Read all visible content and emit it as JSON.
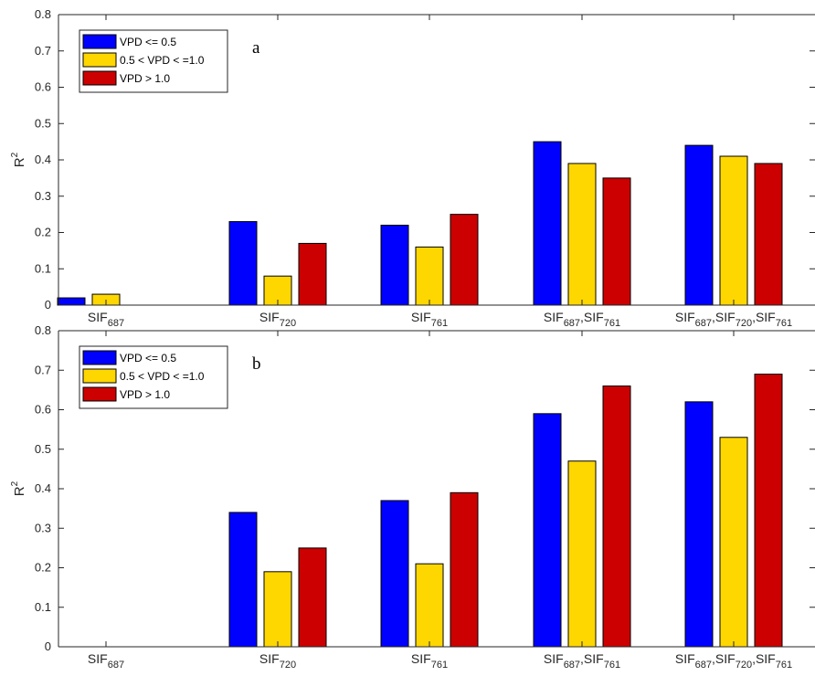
{
  "chart_data": [
    {
      "type": "bar",
      "panel_label": "a",
      "ylabel_base": "R",
      "ylabel_sup": "2",
      "ylim": [
        0,
        0.8
      ],
      "yticks": [
        "0",
        "0.1",
        "0.2",
        "0.3",
        "0.4",
        "0.5",
        "0.6",
        "0.7",
        "0.8"
      ],
      "categories": [
        {
          "parts": [
            {
              "t": "SIF",
              "sub": "687"
            }
          ]
        },
        {
          "parts": [
            {
              "t": "SIF",
              "sub": "720"
            }
          ]
        },
        {
          "parts": [
            {
              "t": "SIF",
              "sub": "761"
            }
          ]
        },
        {
          "parts": [
            {
              "t": "SIF",
              "sub": "687"
            },
            {
              "t": ",SIF",
              "sub": "761"
            }
          ]
        },
        {
          "parts": [
            {
              "t": "SIF",
              "sub": "687"
            },
            {
              "t": ",SIF",
              "sub": "720"
            },
            {
              "t": ",SIF",
              "sub": "761"
            }
          ]
        }
      ],
      "series": [
        {
          "name": "VPD <= 0.5",
          "color": "#0000ff",
          "values": [
            0.02,
            0.23,
            0.22,
            0.45,
            0.44
          ]
        },
        {
          "name": "0.5 < VPD < =1.0",
          "color": "#ffd700",
          "values": [
            0.03,
            0.08,
            0.16,
            0.39,
            0.41
          ]
        },
        {
          "name": "VPD > 1.0",
          "color": "#cc0000",
          "values": [
            0,
            0.17,
            0.25,
            0.35,
            0.39
          ]
        }
      ],
      "legend_position": "top-left",
      "grid": false
    },
    {
      "type": "bar",
      "panel_label": "b",
      "ylabel_base": "R",
      "ylabel_sup": "2",
      "ylim": [
        0,
        0.8
      ],
      "yticks": [
        "0",
        "0.1",
        "0.2",
        "0.3",
        "0.4",
        "0.5",
        "0.6",
        "0.7",
        "0.8"
      ],
      "categories": [
        {
          "parts": [
            {
              "t": "SIF",
              "sub": "687"
            }
          ]
        },
        {
          "parts": [
            {
              "t": "SIF",
              "sub": "720"
            }
          ]
        },
        {
          "parts": [
            {
              "t": "SIF",
              "sub": "761"
            }
          ]
        },
        {
          "parts": [
            {
              "t": "SIF",
              "sub": "687"
            },
            {
              "t": ",SIF",
              "sub": "761"
            }
          ]
        },
        {
          "parts": [
            {
              "t": "SIF",
              "sub": "687"
            },
            {
              "t": ",SIF",
              "sub": "720"
            },
            {
              "t": ",SIF",
              "sub": "761"
            }
          ]
        }
      ],
      "series": [
        {
          "name": "VPD <= 0.5",
          "color": "#0000ff",
          "values": [
            0,
            0.34,
            0.37,
            0.59,
            0.62
          ]
        },
        {
          "name": "0.5 < VPD < =1.0",
          "color": "#ffd700",
          "values": [
            0,
            0.19,
            0.21,
            0.47,
            0.53
          ]
        },
        {
          "name": "VPD > 1.0",
          "color": "#cc0000",
          "values": [
            0,
            0.25,
            0.39,
            0.66,
            0.69
          ]
        }
      ],
      "legend_position": "top-left",
      "grid": false
    }
  ]
}
